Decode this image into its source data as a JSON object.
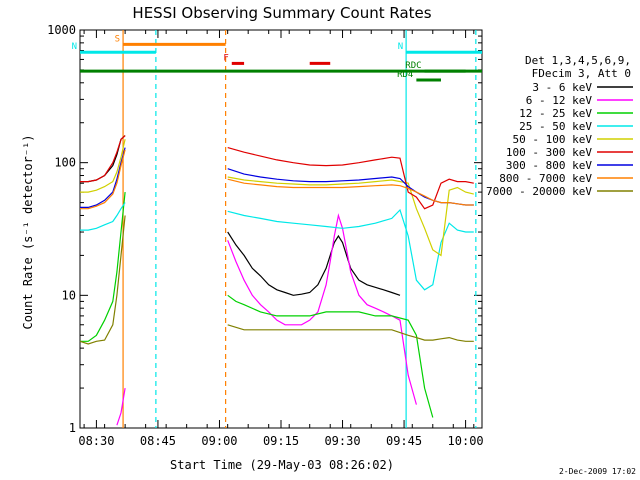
{
  "chart_data": {
    "type": "line",
    "title": "HESSI Observing Summary Count Rates",
    "xlabel": "Start Time (29-May-03 08:26:02)",
    "ylabel": "Count Rate (s⁻¹ detector⁻¹)",
    "x_units": "minutes since 08:26:02",
    "xlim": [
      0,
      98
    ],
    "ylim": [
      1,
      1000
    ],
    "y_scale": "log",
    "x_ticks": [
      {
        "label": "08:30",
        "x": 4
      },
      {
        "label": "08:45",
        "x": 19
      },
      {
        "label": "09:00",
        "x": 34
      },
      {
        "label": "09:15",
        "x": 49
      },
      {
        "label": "09:30",
        "x": 64
      },
      {
        "label": "09:45",
        "x": 79
      },
      {
        "label": "10:00",
        "x": 94
      }
    ],
    "y_ticks": [
      {
        "label": "1",
        "y": 1
      },
      {
        "label": "10",
        "y": 10
      },
      {
        "label": "100",
        "y": 100
      },
      {
        "label": "1000",
        "y": 1000
      }
    ],
    "legend_header": [
      "Det 1,3,4,5,6,9,",
      "FDecim 3, Att 0"
    ],
    "legend_position": "right",
    "timestamp": "2-Dec-2009 17:02",
    "series": [
      {
        "name": "3 - 6 keV",
        "color": "#000000",
        "x": [
          0,
          2,
          4,
          6,
          8,
          9,
          10,
          11,
          36,
          38,
          40,
          42,
          44,
          46,
          48,
          50,
          52,
          54,
          56,
          58,
          60,
          61,
          62,
          63,
          64,
          65,
          66,
          68,
          70,
          72,
          74,
          76,
          78
        ],
        "y": [
          72,
          72,
          74,
          80,
          95,
          115,
          150,
          160,
          30,
          24,
          20,
          16,
          14,
          12,
          11,
          10.5,
          10,
          10.2,
          10.5,
          12,
          16,
          20,
          25,
          28,
          25,
          20,
          16,
          13,
          12,
          11.5,
          11,
          10.5,
          10
        ]
      },
      {
        "name": "6 - 12 keV",
        "color": "#ff00ff",
        "x": [
          9,
          10,
          11,
          36,
          38,
          40,
          42,
          44,
          46,
          48,
          50,
          52,
          54,
          56,
          58,
          60,
          61,
          62,
          63,
          64,
          65,
          66,
          68,
          70,
          72,
          74,
          76,
          78,
          80,
          82
        ],
        "y": [
          1.05,
          1.3,
          2,
          26,
          18,
          13,
          10,
          8.5,
          7.5,
          6.5,
          6,
          6,
          6,
          6.5,
          7.5,
          12,
          18,
          28,
          40,
          32,
          22,
          15,
          10,
          8.5,
          8,
          7.5,
          7,
          6.5,
          2.5,
          1.5
        ]
      },
      {
        "name": "12 - 25 keV",
        "color": "#00d000",
        "x": [
          0,
          2,
          4,
          6,
          8,
          9,
          10,
          11,
          36,
          38,
          40,
          44,
          48,
          52,
          56,
          60,
          64,
          68,
          72,
          76,
          80,
          82,
          84,
          86
        ],
        "y": [
          4.5,
          4.5,
          5,
          6.5,
          9,
          15,
          30,
          60,
          10,
          9,
          8.5,
          7.5,
          7,
          7,
          7,
          7.5,
          7.5,
          7.5,
          7,
          7,
          6.5,
          5,
          2,
          1.2
        ]
      },
      {
        "name": "25 - 50 keV",
        "color": "#00e8e8",
        "x": [
          0,
          2,
          4,
          6,
          8,
          9,
          10,
          11,
          36,
          40,
          44,
          48,
          52,
          56,
          60,
          64,
          68,
          72,
          76,
          78,
          80,
          82,
          84,
          86,
          88,
          90,
          92,
          94,
          96
        ],
        "y": [
          31,
          31,
          32,
          34,
          36,
          40,
          45,
          50,
          43,
          40,
          38,
          36,
          35,
          34,
          33,
          32,
          33,
          35,
          38,
          44,
          28,
          13,
          11,
          12,
          25,
          35,
          31,
          30,
          30
        ]
      },
      {
        "name": "50 - 100 keV",
        "color": "#d0d000",
        "x": [
          0,
          2,
          4,
          6,
          8,
          9,
          10,
          11,
          36,
          40,
          44,
          48,
          52,
          56,
          60,
          64,
          68,
          72,
          76,
          80,
          82,
          84,
          86,
          88,
          90,
          92,
          94,
          96
        ],
        "y": [
          60,
          60,
          62,
          66,
          72,
          85,
          110,
          150,
          78,
          74,
          72,
          70,
          69,
          68,
          68,
          69,
          70,
          72,
          74,
          70,
          45,
          32,
          22,
          20,
          62,
          65,
          60,
          58
        ]
      },
      {
        "name": "100 - 300 keV",
        "color": "#e00000",
        "x": [
          0,
          2,
          4,
          6,
          8,
          9,
          10,
          11,
          36,
          40,
          44,
          48,
          52,
          56,
          60,
          64,
          68,
          72,
          76,
          78,
          80,
          82,
          84,
          86,
          88,
          90,
          92,
          94,
          96
        ],
        "y": [
          72,
          72,
          74,
          80,
          100,
          120,
          150,
          160,
          130,
          120,
          112,
          105,
          100,
          96,
          95,
          96,
          100,
          105,
          110,
          108,
          60,
          55,
          45,
          48,
          70,
          75,
          72,
          72,
          70
        ]
      },
      {
        "name": "300 - 800 keV",
        "color": "#0000e0",
        "x": [
          0,
          2,
          4,
          6,
          8,
          9,
          10,
          11,
          36,
          40,
          44,
          48,
          52,
          56,
          60,
          64,
          68,
          72,
          76,
          78,
          80,
          82,
          84,
          86,
          88,
          90,
          92,
          94,
          96
        ],
        "y": [
          46,
          46,
          48,
          52,
          60,
          75,
          100,
          130,
          90,
          82,
          78,
          75,
          73,
          72,
          72,
          73,
          74,
          76,
          78,
          76,
          66,
          60,
          55,
          52,
          50,
          50,
          49,
          48,
          48
        ]
      },
      {
        "name": "800 - 7000 keV",
        "color": "#ff8000",
        "x": [
          0,
          2,
          4,
          6,
          8,
          9,
          10,
          11,
          36,
          40,
          44,
          48,
          52,
          56,
          60,
          64,
          68,
          72,
          76,
          78,
          80,
          82,
          84,
          86,
          88,
          90,
          92,
          94,
          96
        ],
        "y": [
          45,
          45,
          47,
          50,
          58,
          70,
          95,
          125,
          75,
          70,
          68,
          66,
          65,
          65,
          65,
          65,
          66,
          67,
          68,
          67,
          64,
          60,
          56,
          52,
          50,
          50,
          49,
          48,
          48
        ]
      },
      {
        "name": "7000 - 20000 keV",
        "color": "#808000",
        "x": [
          0,
          2,
          4,
          6,
          8,
          9,
          10,
          11,
          36,
          40,
          44,
          48,
          52,
          56,
          60,
          64,
          68,
          72,
          76,
          80,
          82,
          84,
          86,
          88,
          90,
          92,
          94,
          96
        ],
        "y": [
          4.5,
          4.3,
          4.5,
          4.6,
          6,
          10,
          20,
          40,
          6,
          5.5,
          5.5,
          5.5,
          5.5,
          5.5,
          5.5,
          5.5,
          5.5,
          5.5,
          5.5,
          5,
          4.8,
          4.6,
          4.6,
          4.7,
          4.8,
          4.6,
          4.5,
          4.5
        ]
      }
    ],
    "vertical_markers": [
      {
        "x": 10.5,
        "color": "#ff8000",
        "style": "solid"
      },
      {
        "x": 35.5,
        "color": "#ff8000",
        "style": "dashed"
      },
      {
        "x": 18.5,
        "color": "#00e8e8",
        "style": "dashed"
      },
      {
        "x": 79.5,
        "color": "#00e8e8",
        "style": "solid"
      },
      {
        "x": 96.5,
        "color": "#00e8e8",
        "style": "dashed"
      }
    ],
    "flag_bars": [
      {
        "label": "S",
        "label_color": "#ff8000",
        "color": "#ff8000",
        "x1": 10.5,
        "x2": 35.5,
        "y": 780,
        "thickness": 2
      },
      {
        "label": "N",
        "label_color": "#00e8e8",
        "color": "#00e8e8",
        "x1": 0,
        "x2": 18.5,
        "y": 680,
        "thickness": 2
      },
      {
        "label": "N",
        "label_color": "#00e8e8",
        "color": "#00e8e8",
        "x1": 79.5,
        "x2": 98,
        "y": 680,
        "thickness": 2
      },
      {
        "label": "F",
        "label_color": "#e00000",
        "color": "#e00000",
        "x1": 37,
        "x2": 40,
        "y": 560,
        "thickness": 2
      },
      {
        "label": "",
        "label_color": "#e00000",
        "color": "#e00000",
        "x1": 56,
        "x2": 61,
        "y": 560,
        "thickness": 2
      },
      {
        "label": "",
        "label_color": "#008000",
        "color": "#008000",
        "x1": 0,
        "x2": 98,
        "y": 490,
        "thickness": 2
      },
      {
        "label": "RDC",
        "label_color": "#008000",
        "color": "#008000",
        "x1": 84,
        "x2": 94,
        "y": 490,
        "thickness": 2
      },
      {
        "label": "RD4",
        "label_color": "#008000",
        "color": "#008000",
        "x1": 82,
        "x2": 88,
        "y": 420,
        "thickness": 2
      }
    ]
  }
}
